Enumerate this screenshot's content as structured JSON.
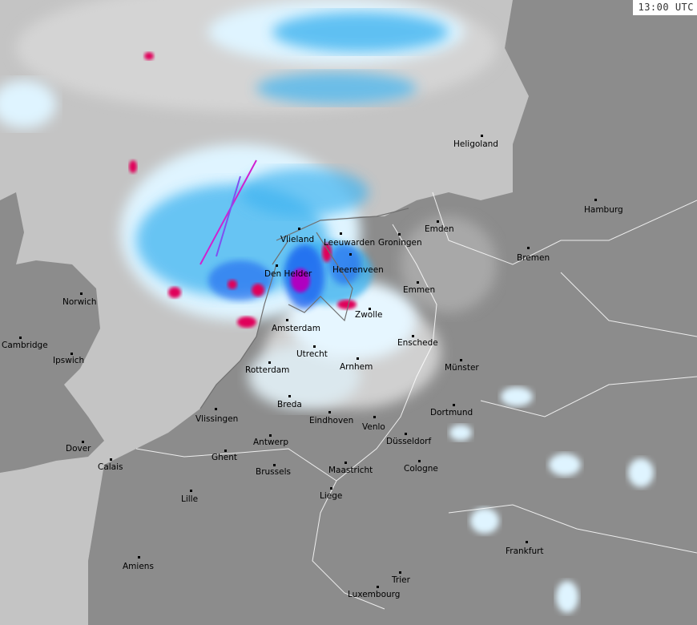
{
  "timestamp": "13:00 UTC",
  "colors": {
    "sea": "#c4c4c4",
    "land": "#8c8c8c",
    "light_precip": "#dff4ff",
    "moderate_precip": "#40b4f0",
    "heavy_precip": "#1e64f0",
    "intense_precip": "#e0005a",
    "extreme_precip": "#ff00ff",
    "borders": "#ffffff"
  },
  "cities": [
    {
      "name": "Heligoland"
    },
    {
      "name": "Hamburg"
    },
    {
      "name": "Bremen"
    },
    {
      "name": "Emden"
    },
    {
      "name": "Vlieland"
    },
    {
      "name": "Leeuwarden"
    },
    {
      "name": "Groningen"
    },
    {
      "name": "Den Helder"
    },
    {
      "name": "Heerenveen"
    },
    {
      "name": "Emmen"
    },
    {
      "name": "Zwolle"
    },
    {
      "name": "Amsterdam"
    },
    {
      "name": "Enschede"
    },
    {
      "name": "Utrecht"
    },
    {
      "name": "Norwich"
    },
    {
      "name": "Cambridge"
    },
    {
      "name": "Ipswich"
    },
    {
      "name": "Rotterdam"
    },
    {
      "name": "Arnhem"
    },
    {
      "name": "Münster"
    },
    {
      "name": "Breda"
    },
    {
      "name": "Vlissingen"
    },
    {
      "name": "Eindhoven"
    },
    {
      "name": "Dortmund"
    },
    {
      "name": "Venlo"
    },
    {
      "name": "Düsseldorf"
    },
    {
      "name": "Antwerp"
    },
    {
      "name": "Dover"
    },
    {
      "name": "Calais"
    },
    {
      "name": "Ghent"
    },
    {
      "name": "Cologne"
    },
    {
      "name": "Brussels"
    },
    {
      "name": "Maastricht"
    },
    {
      "name": "Lille"
    },
    {
      "name": "Liege"
    },
    {
      "name": "Frankfurt"
    },
    {
      "name": "Amiens"
    },
    {
      "name": "Trier"
    },
    {
      "name": "Luxembourg"
    }
  ]
}
